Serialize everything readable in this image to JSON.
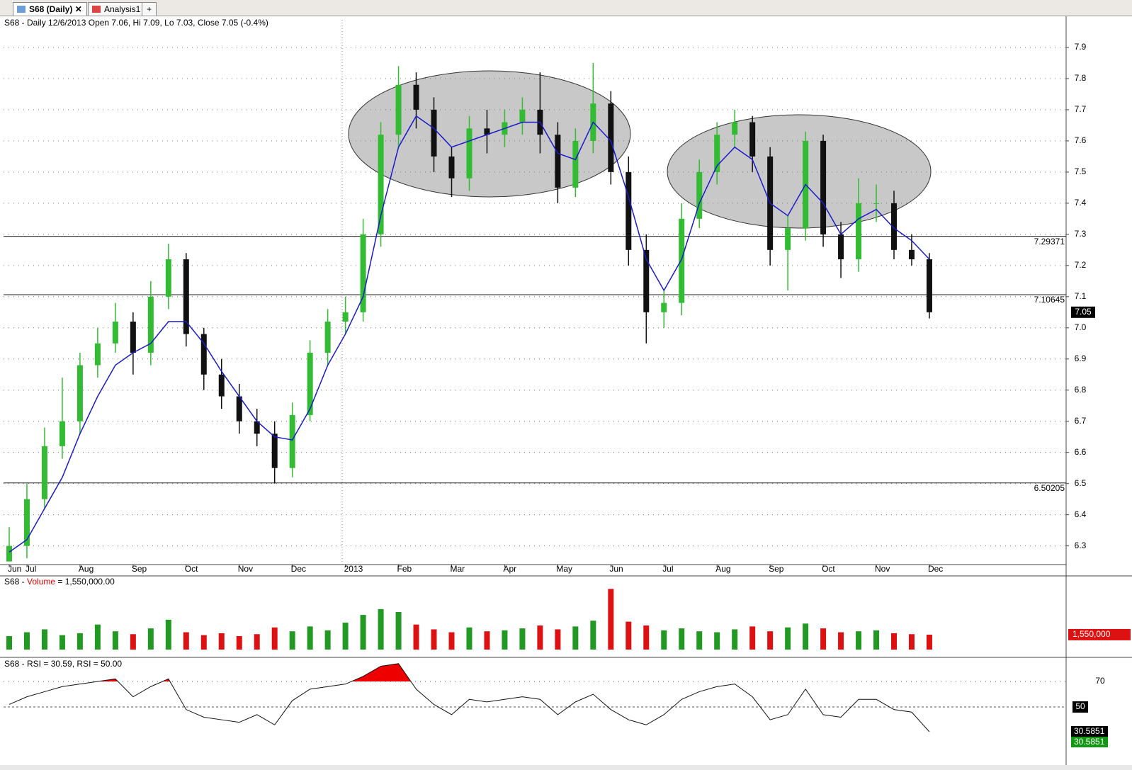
{
  "tabs": [
    "S68 (Daily)",
    "Analysis1"
  ],
  "header": "S68 - Daily 12/6/2013 Open 7.06, Hi 7.09, Lo 7.03, Close 7.05 (-0.4%)",
  "chart_data": [
    {
      "type": "candlestick",
      "categories": [
        "Jun",
        "Jul",
        null,
        null,
        "Aug",
        null,
        null,
        "Sep",
        null,
        null,
        "Oct",
        null,
        null,
        "Nov",
        null,
        null,
        "Dec",
        null,
        null,
        "2013",
        null,
        null,
        "Feb",
        null,
        null,
        "Mar",
        null,
        null,
        "Apr",
        null,
        null,
        "May",
        null,
        null,
        "Jun",
        null,
        null,
        "Jul",
        null,
        null,
        "Aug",
        null,
        null,
        "Sep",
        null,
        null,
        "Oct",
        null,
        null,
        "Nov",
        null,
        null,
        "Dec"
      ],
      "open": [
        6.25,
        6.3,
        6.45,
        6.62,
        6.7,
        6.88,
        6.95,
        7.02,
        6.92,
        7.1,
        7.22,
        6.98,
        6.85,
        6.78,
        6.7,
        6.66,
        6.55,
        6.72,
        6.92,
        7.02,
        7.05,
        7.3,
        7.62,
        7.78,
        7.7,
        7.55,
        7.48,
        7.64,
        7.62,
        7.66,
        7.7,
        7.62,
        7.45,
        7.6,
        7.72,
        7.5,
        7.25,
        7.05,
        7.08,
        7.35,
        7.5,
        7.62,
        7.66,
        7.55,
        7.25,
        7.32,
        7.6,
        7.3,
        7.22,
        7.4,
        7.4,
        7.25,
        7.22
      ],
      "high": [
        6.36,
        6.5,
        6.68,
        6.84,
        6.92,
        7.0,
        7.08,
        7.05,
        7.15,
        7.27,
        7.24,
        7.0,
        6.9,
        6.82,
        6.74,
        6.7,
        6.76,
        6.96,
        7.06,
        7.1,
        7.35,
        7.66,
        7.84,
        7.82,
        7.74,
        7.58,
        7.68,
        7.7,
        7.7,
        7.74,
        7.82,
        7.66,
        7.64,
        7.85,
        7.76,
        7.55,
        7.3,
        7.12,
        7.4,
        7.54,
        7.66,
        7.7,
        7.68,
        7.58,
        7.36,
        7.63,
        7.62,
        7.34,
        7.48,
        7.46,
        7.44,
        7.3,
        7.24
      ],
      "low": [
        6.25,
        6.26,
        6.42,
        6.58,
        6.66,
        6.84,
        6.92,
        6.85,
        6.88,
        7.06,
        6.94,
        6.8,
        6.74,
        6.66,
        6.62,
        6.5,
        6.52,
        6.7,
        6.88,
        6.98,
        7.02,
        7.26,
        7.58,
        7.64,
        7.5,
        7.42,
        7.44,
        7.56,
        7.58,
        7.62,
        7.56,
        7.4,
        7.42,
        7.56,
        7.46,
        7.2,
        6.95,
        7.0,
        7.04,
        7.32,
        7.46,
        7.58,
        7.5,
        7.2,
        7.12,
        7.28,
        7.26,
        7.16,
        7.18,
        7.34,
        7.22,
        7.2,
        7.03
      ],
      "close": [
        6.3,
        6.45,
        6.62,
        6.7,
        6.88,
        6.95,
        7.02,
        6.92,
        7.1,
        7.22,
        6.98,
        6.85,
        6.78,
        6.7,
        6.66,
        6.55,
        6.72,
        6.92,
        7.02,
        7.05,
        7.3,
        7.62,
        7.78,
        7.7,
        7.55,
        7.48,
        7.64,
        7.62,
        7.66,
        7.7,
        7.62,
        7.45,
        7.6,
        7.72,
        7.5,
        7.25,
        7.05,
        7.08,
        7.35,
        7.5,
        7.62,
        7.66,
        7.55,
        7.25,
        7.32,
        7.6,
        7.3,
        7.22,
        7.4,
        7.4,
        7.25,
        7.22,
        7.05
      ],
      "up_color": "#33bb33",
      "down_color": "#111111",
      "ma_color": "#1a1acc",
      "ma_values": [
        6.28,
        6.32,
        6.42,
        6.52,
        6.66,
        6.78,
        6.88,
        6.92,
        6.95,
        7.02,
        7.02,
        6.95,
        6.86,
        6.78,
        6.7,
        6.65,
        6.64,
        6.74,
        6.88,
        6.98,
        7.1,
        7.36,
        7.58,
        7.68,
        7.64,
        7.58,
        7.6,
        7.62,
        7.64,
        7.66,
        7.66,
        7.56,
        7.54,
        7.66,
        7.6,
        7.42,
        7.22,
        7.12,
        7.22,
        7.4,
        7.52,
        7.58,
        7.54,
        7.4,
        7.36,
        7.46,
        7.4,
        7.3,
        7.35,
        7.38,
        7.32,
        7.28,
        7.22
      ],
      "levels": [
        7.29371,
        7.10645,
        6.50205
      ],
      "ylim": [
        6.24,
        8.0
      ],
      "yticks": [
        6.3,
        6.4,
        6.5,
        6.6,
        6.7,
        6.8,
        6.9,
        {
          "value": 7,
          "label": "7.0"
        },
        7.1,
        7.2,
        7.3,
        7.4,
        7.5,
        7.6,
        7.7,
        7.8,
        7.9
      ],
      "grid": true
    },
    {
      "type": "bar",
      "title": [
        "S68 - ",
        "Volume",
        " = 1,550,000.00"
      ],
      "values": [
        1400000,
        1800000,
        2100000,
        1500000,
        1700000,
        2600000,
        1900000,
        1600000,
        2200000,
        3100000,
        1800000,
        1500000,
        1700000,
        1400000,
        1600000,
        2300000,
        1900000,
        2400000,
        2000000,
        2800000,
        3600000,
        4200000,
        3900000,
        2600000,
        2100000,
        1800000,
        2300000,
        1900000,
        2000000,
        2200000,
        2500000,
        2100000,
        2400000,
        3000000,
        6300000,
        2900000,
        2500000,
        2000000,
        2200000,
        1900000,
        1800000,
        2100000,
        2400000,
        1900000,
        2300000,
        2700000,
        2200000,
        1800000,
        1900000,
        2000000,
        1700000,
        1600000,
        1550000
      ],
      "value_labels": [
        null,
        null,
        null,
        null,
        null,
        null,
        null,
        null,
        null,
        null,
        null,
        null,
        null,
        null,
        null,
        null,
        null,
        null,
        null,
        null,
        null,
        null,
        null,
        null,
        null,
        null,
        null,
        null,
        null,
        null,
        null,
        null,
        null,
        null,
        null,
        null,
        null,
        null,
        null,
        null,
        null,
        null,
        null,
        null,
        null,
        null,
        null,
        null,
        null,
        null,
        null,
        null,
        "1,550,000"
      ],
      "up_color": "#229922",
      "down_color": "#dd1111",
      "ylim": [
        0,
        6400000
      ]
    },
    {
      "type": "line",
      "title": "S68 - RSI = 30.59, RSI = 50.00",
      "values": [
        52,
        58,
        62,
        66,
        68,
        70,
        72,
        58,
        66,
        72,
        48,
        42,
        40,
        38,
        44,
        36,
        55,
        64,
        66,
        68,
        74,
        82,
        84,
        64,
        52,
        44,
        56,
        54,
        56,
        58,
        56,
        44,
        54,
        60,
        48,
        40,
        36,
        44,
        56,
        62,
        66,
        68,
        58,
        40,
        44,
        64,
        44,
        42,
        56,
        56,
        48,
        46,
        30.59
      ],
      "last_label": "30.5851",
      "color": "#111111",
      "overbought_color": "#ee0000",
      "ylim": [
        5.6,
        87.8
      ],
      "yticks": [
        50,
        70
      ]
    }
  ]
}
